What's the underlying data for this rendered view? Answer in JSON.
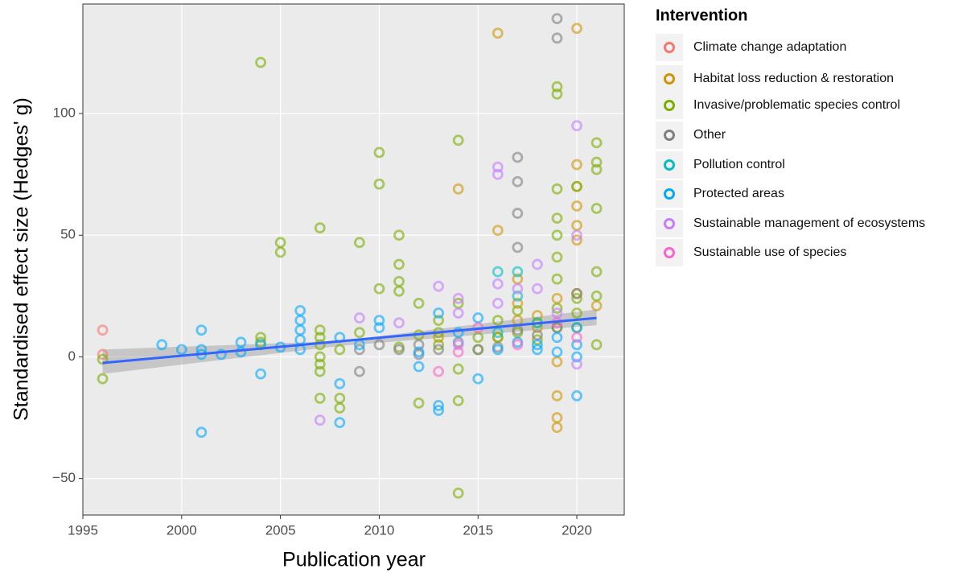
{
  "chart_data": {
    "type": "scatter",
    "x_label": "Publication year",
    "y_label": "Standardised effect size (Hedges' g)",
    "legend_title": "Intervention",
    "legend_position": "right",
    "grid": true,
    "xlim": [
      1995,
      2022.4
    ],
    "ylim": [
      -65,
      145
    ],
    "xticks": [
      1995,
      2000,
      2005,
      2010,
      2015,
      2020
    ],
    "yticks": [
      {
        "value": -50,
        "label": "−50"
      },
      0,
      50,
      100
    ],
    "trend": {
      "color": "#3366ff",
      "x": [
        1996,
        2021
      ],
      "values": [
        -2.5,
        16
      ]
    },
    "band": {
      "color": "#999999",
      "x": [
        1996,
        2008,
        2021
      ],
      "lower": [
        -7,
        4.5,
        13
      ],
      "upper": [
        3,
        6.5,
        19.5
      ]
    },
    "series": [
      {
        "name": "Climate change adaptation",
        "color": "#F8766D",
        "x": [
          1996,
          1996
        ],
        "values": [
          11,
          1
        ]
      },
      {
        "name": "Habitat loss reduction & restoration",
        "color": "#CD9600",
        "x": [
          2014,
          2016,
          2016,
          2017,
          2017,
          2017,
          2018,
          2018,
          2019,
          2019,
          2019,
          2019,
          2019,
          2020,
          2020,
          2020,
          2020,
          2020,
          2020,
          2021,
          2020,
          2013,
          2016
        ],
        "values": [
          69,
          133,
          52,
          32,
          22,
          15,
          12,
          17,
          24,
          -2,
          -16,
          -25,
          -29,
          135,
          79,
          70,
          62,
          54,
          48,
          21,
          26,
          8,
          8
        ]
      },
      {
        "name": "Invasive/problematic species control",
        "color": "#7CAE00",
        "x": [
          1996,
          1996,
          2004,
          2004,
          2004,
          2005,
          2005,
          2007,
          2007,
          2007,
          2007,
          2007,
          2007,
          2007,
          2007,
          2008,
          2008,
          2008,
          2009,
          2009,
          2010,
          2010,
          2010,
          2011,
          2011,
          2011,
          2011,
          2011,
          2012,
          2012,
          2012,
          2013,
          2013,
          2013,
          2014,
          2014,
          2014,
          2014,
          2014,
          2015,
          2015,
          2016,
          2016,
          2017,
          2017,
          2018,
          2018,
          2019,
          2019,
          2019,
          2019,
          2019,
          2019,
          2019,
          2019,
          2019,
          2020,
          2020,
          2020,
          2020,
          2021,
          2021,
          2021,
          2021,
          2021,
          2021,
          2021
        ],
        "values": [
          -1,
          -9,
          121,
          8,
          6,
          47,
          43,
          53,
          11,
          8,
          5,
          0,
          -3,
          -6,
          -17,
          -17,
          -21,
          3,
          47,
          10,
          84,
          71,
          28,
          50,
          38,
          31,
          27,
          4,
          22,
          -19,
          9,
          15,
          10,
          5,
          89,
          -18,
          -56,
          22,
          -5,
          8,
          3,
          15,
          8,
          19,
          10,
          14,
          7,
          111,
          108,
          69,
          57,
          50,
          41,
          32,
          20,
          12,
          70,
          24,
          18,
          12,
          88,
          80,
          77,
          61,
          35,
          25,
          5
        ]
      },
      {
        "name": "Other",
        "color": "#7F7F7F",
        "x": [
          2009,
          2009,
          2010,
          2011,
          2012,
          2012,
          2013,
          2014,
          2015,
          2016,
          2017,
          2017,
          2017,
          2017,
          2017,
          2018,
          2019,
          2019,
          2019,
          2020
        ],
        "values": [
          -6,
          3,
          5,
          3,
          1,
          5,
          3,
          6,
          3,
          4,
          82,
          72,
          59,
          45,
          11,
          9,
          139,
          131,
          12,
          26
        ]
      },
      {
        "name": "Pollution control",
        "color": "#00BFC4",
        "x": [
          2016,
          2017,
          2017,
          2016,
          2018
        ],
        "values": [
          35,
          35,
          25,
          10,
          14
        ]
      },
      {
        "name": "Protected areas",
        "color": "#00A9FF",
        "x": [
          1999,
          2000,
          2001,
          2001,
          2001,
          2001,
          2002,
          2003,
          2003,
          2004,
          2004,
          2005,
          2006,
          2006,
          2006,
          2006,
          2006,
          2008,
          2008,
          2008,
          2009,
          2010,
          2010,
          2012,
          2012,
          2013,
          2013,
          2013,
          2014,
          2015,
          2015,
          2016,
          2017,
          2018,
          2018,
          2019,
          2019,
          2020,
          2020,
          2020,
          2020
        ],
        "values": [
          5,
          3,
          11,
          3,
          1,
          -31,
          1,
          6,
          2,
          -7,
          5,
          4,
          19,
          15,
          11,
          7,
          3,
          -11,
          -27,
          8,
          5,
          15,
          12,
          -4,
          2,
          18,
          -20,
          -22,
          10,
          16,
          -9,
          3,
          6,
          5,
          3,
          8,
          2,
          12,
          5,
          -16,
          0
        ]
      },
      {
        "name": "Sustainable management of ecosystems",
        "color": "#C77CFF",
        "x": [
          2007,
          2009,
          2011,
          2013,
          2014,
          2014,
          2016,
          2016,
          2016,
          2016,
          2017,
          2018,
          2018,
          2019,
          2020,
          2020,
          2020,
          2014
        ],
        "values": [
          -26,
          16,
          14,
          29,
          24,
          18,
          78,
          75,
          30,
          22,
          28,
          38,
          28,
          18,
          95,
          50,
          -3,
          5
        ]
      },
      {
        "name": "Sustainable use of species",
        "color": "#FF61CC",
        "x": [
          2013,
          2014,
          2017,
          2015,
          2019,
          2020
        ],
        "values": [
          -6,
          2,
          5,
          12,
          14,
          8
        ]
      }
    ]
  }
}
